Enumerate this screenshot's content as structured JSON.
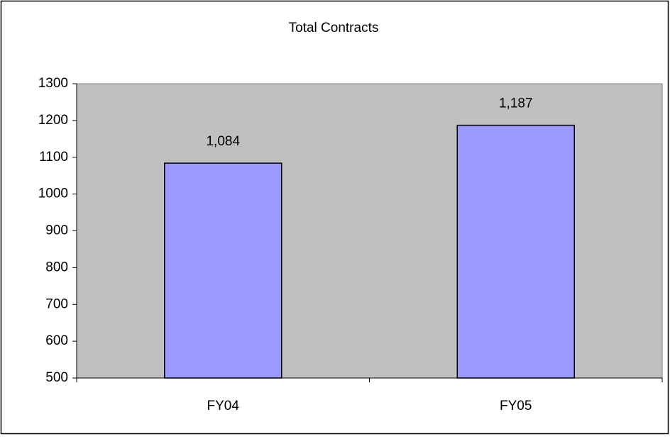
{
  "chart_data": {
    "type": "bar",
    "title": "Total Contracts",
    "categories": [
      "FY04",
      "FY05"
    ],
    "values": [
      1084,
      1187
    ],
    "value_labels": [
      "1,084",
      "1,187"
    ],
    "color": "#9999ff",
    "plot_background": "#c0c0c0",
    "ylim": [
      500,
      1300
    ],
    "yticks": [
      500,
      600,
      700,
      800,
      900,
      1000,
      1100,
      1200,
      1300
    ]
  }
}
